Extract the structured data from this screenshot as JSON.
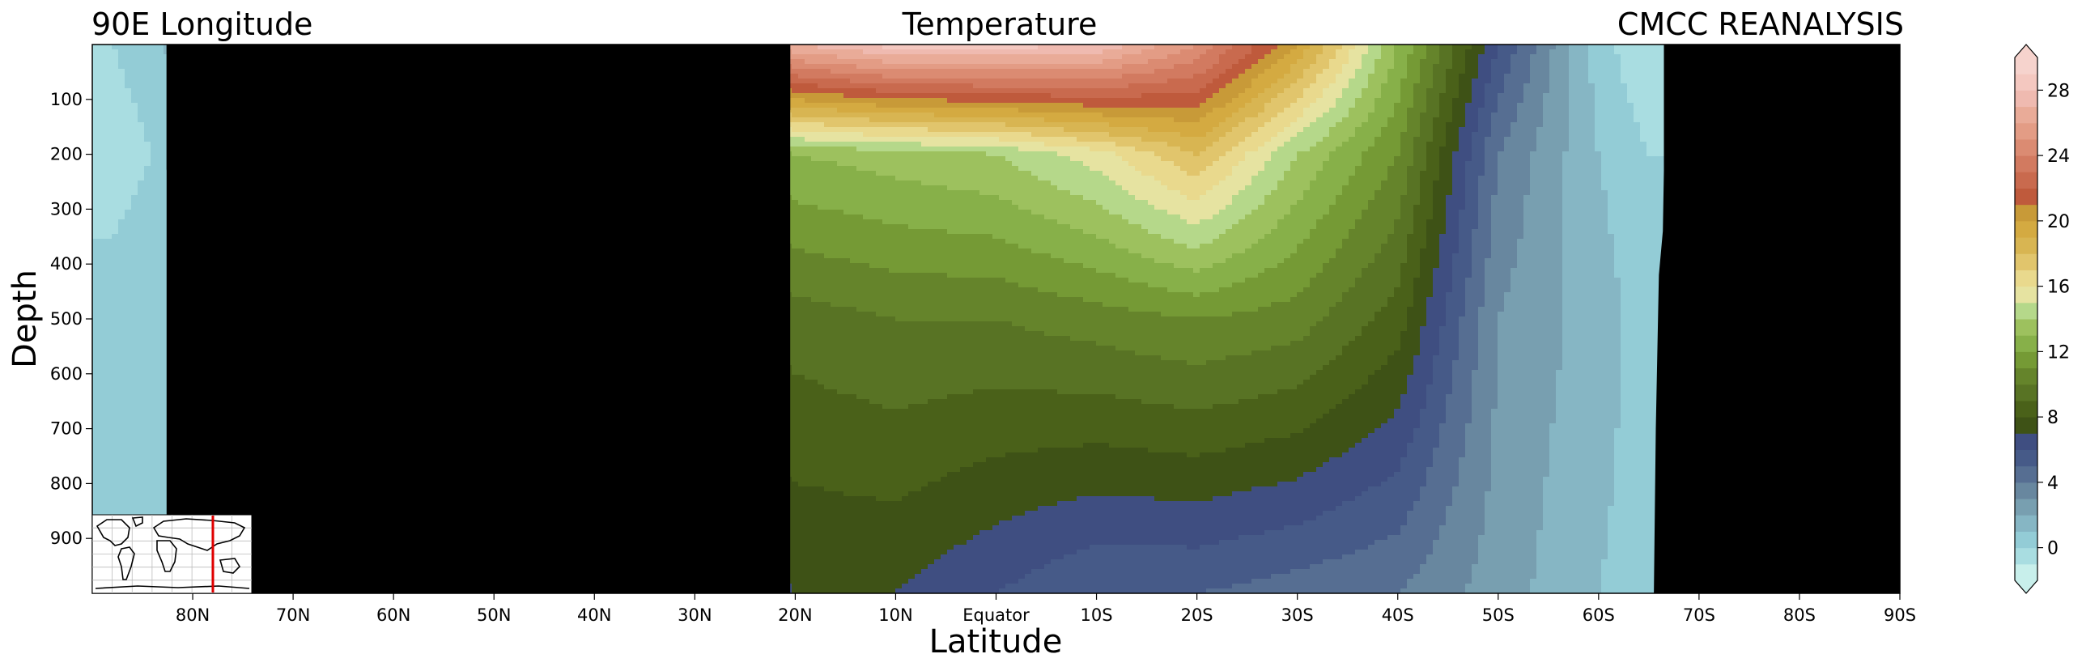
{
  "header": {
    "left_title": "90E Longitude",
    "center_title": "Temperature",
    "right_title": "CMCC REANALYSIS"
  },
  "chart_data": {
    "type": "heatmap",
    "subtype": "filled-contour depth-latitude section",
    "title": "Temperature",
    "xlabel": "Latitude",
    "ylabel": "Depth",
    "x_ticks": [
      {
        "value": 80,
        "label": "80N"
      },
      {
        "value": 70,
        "label": "70N"
      },
      {
        "value": 60,
        "label": "60N"
      },
      {
        "value": 50,
        "label": "50N"
      },
      {
        "value": 40,
        "label": "40N"
      },
      {
        "value": 30,
        "label": "30N"
      },
      {
        "value": 20,
        "label": "20N"
      },
      {
        "value": 10,
        "label": "10N"
      },
      {
        "value": 0,
        "label": "Equator"
      },
      {
        "value": -10,
        "label": "10S"
      },
      {
        "value": -20,
        "label": "20S"
      },
      {
        "value": -30,
        "label": "30S"
      },
      {
        "value": -40,
        "label": "40S"
      },
      {
        "value": -50,
        "label": "50S"
      },
      {
        "value": -60,
        "label": "60S"
      },
      {
        "value": -70,
        "label": "70S"
      },
      {
        "value": -80,
        "label": "80S"
      },
      {
        "value": -90,
        "label": "90S"
      }
    ],
    "y_ticks": [
      100,
      200,
      300,
      400,
      500,
      600,
      700,
      800,
      900
    ],
    "xlim": [
      90,
      -90
    ],
    "ylim": [
      1000,
      0
    ],
    "colorbar": {
      "min": -2,
      "max": 30,
      "step": 1,
      "extend": "both",
      "ticks": [
        0,
        4,
        8,
        12,
        16,
        20,
        24,
        28
      ],
      "colors": [
        "#c8efeb",
        "#a9dde1",
        "#93ccd6",
        "#86b6c4",
        "#789fb0",
        "#68879f",
        "#566e92",
        "#465a88",
        "#3f4e81",
        "#3e5216",
        "#4a6119",
        "#587324",
        "#65842b",
        "#759a35",
        "#87b049",
        "#9dc15e",
        "#b5d88a",
        "#e6e3a1",
        "#e9d98d",
        "#e1c56c",
        "#d8b552",
        "#d4aa41",
        "#c89a38",
        "#bf5a3c",
        "#c96a4e",
        "#d27a60",
        "#db8b72",
        "#e39c85",
        "#e9ab98",
        "#efbab0",
        "#f4c8c0",
        "#f6d3cd"
      ]
    },
    "land_mask_color": "#000000",
    "section_profile": [
      {
        "lat": 88,
        "t0": 0.0,
        "t200": -0.5,
        "t500": 0.5,
        "t1000": 0.5
      },
      {
        "lat": 84,
        "t0": 0.5,
        "t200": 0.0,
        "t500": 0.8,
        "t1000": 0.5
      },
      {
        "lat": 20,
        "t0": 27.0,
        "t200": 13.0,
        "t500": 9.5,
        "t1000": 7.0
      },
      {
        "lat": 10,
        "t0": 28.5,
        "t200": 13.5,
        "t500": 10.0,
        "t1000": 7.0
      },
      {
        "lat": 0,
        "t0": 28.5,
        "t200": 14.0,
        "t500": 10.0,
        "t1000": 6.0
      },
      {
        "lat": -10,
        "t0": 28.0,
        "t200": 15.5,
        "t500": 10.5,
        "t1000": 5.0
      },
      {
        "lat": -20,
        "t0": 25.0,
        "t200": 18.0,
        "t500": 11.0,
        "t1000": 5.0
      },
      {
        "lat": -30,
        "t0": 20.0,
        "t200": 14.0,
        "t500": 10.5,
        "t1000": 4.5
      },
      {
        "lat": -40,
        "t0": 13.0,
        "t200": 11.0,
        "t500": 8.5,
        "t1000": 4.0
      },
      {
        "lat": -50,
        "t0": 6.0,
        "t200": 4.0,
        "t500": 3.0,
        "t1000": 2.5
      },
      {
        "lat": -60,
        "t0": 0.5,
        "t200": 1.0,
        "t500": 1.5,
        "t1000": 1.0
      },
      {
        "lat": -65,
        "t0": -1.0,
        "t200": 0.0,
        "t500": 0.5,
        "t1000": 0.5
      }
    ],
    "inset": {
      "section_longitude": 90,
      "line_color": "#e00000"
    }
  }
}
